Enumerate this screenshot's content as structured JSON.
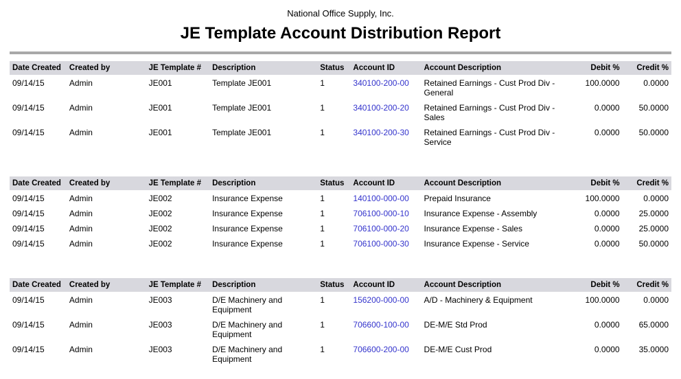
{
  "page": {
    "company": "National Office Supply, Inc.",
    "title": "JE Template Account Distribution Report"
  },
  "colors": {
    "header_bg": "#d8d8de",
    "link": "#3333cc",
    "rule": "#a8a8a8"
  },
  "columns": [
    {
      "key": "date_created",
      "label": "Date Created",
      "align": "left"
    },
    {
      "key": "created_by",
      "label": "Created by",
      "align": "left"
    },
    {
      "key": "je_template",
      "label": "JE Template #",
      "align": "left"
    },
    {
      "key": "description",
      "label": "Description",
      "align": "left"
    },
    {
      "key": "status",
      "label": "Status",
      "align": "left"
    },
    {
      "key": "account_id",
      "label": "Account ID",
      "align": "left"
    },
    {
      "key": "account_description",
      "label": "Account Description",
      "align": "left"
    },
    {
      "key": "debit_pct",
      "label": "Debit %",
      "align": "right"
    },
    {
      "key": "credit_pct",
      "label": "Credit %",
      "align": "right"
    }
  ],
  "groups": [
    {
      "rows": [
        {
          "date_created": "09/14/15",
          "created_by": "Admin",
          "je_template": "JE001",
          "description": "Template JE001",
          "status": "1",
          "account_id": "340100-200-00",
          "account_description": "Retained Earnings - Cust Prod Div - General",
          "debit_pct": "100.0000",
          "credit_pct": "0.0000"
        },
        {
          "date_created": "09/14/15",
          "created_by": "Admin",
          "je_template": "JE001",
          "description": "Template JE001",
          "status": "1",
          "account_id": "340100-200-20",
          "account_description": "Retained Earnings - Cust Prod Div - Sales",
          "debit_pct": "0.0000",
          "credit_pct": "50.0000"
        },
        {
          "date_created": "09/14/15",
          "created_by": "Admin",
          "je_template": "JE001",
          "description": "Template JE001",
          "status": "1",
          "account_id": "340100-200-30",
          "account_description": "Retained Earnings - Cust Prod Div - Service",
          "debit_pct": "0.0000",
          "credit_pct": "50.0000"
        }
      ]
    },
    {
      "rows": [
        {
          "date_created": "09/14/15",
          "created_by": "Admin",
          "je_template": "JE002",
          "description": "Insurance Expense",
          "status": "1",
          "account_id": "140100-000-00",
          "account_description": "Prepaid Insurance",
          "debit_pct": "100.0000",
          "credit_pct": "0.0000"
        },
        {
          "date_created": "09/14/15",
          "created_by": "Admin",
          "je_template": "JE002",
          "description": "Insurance Expense",
          "status": "1",
          "account_id": "706100-000-10",
          "account_description": "Insurance Expense - Assembly",
          "debit_pct": "0.0000",
          "credit_pct": "25.0000"
        },
        {
          "date_created": "09/14/15",
          "created_by": "Admin",
          "je_template": "JE002",
          "description": "Insurance Expense",
          "status": "1",
          "account_id": "706100-000-20",
          "account_description": "Insurance Expense - Sales",
          "debit_pct": "0.0000",
          "credit_pct": "25.0000"
        },
        {
          "date_created": "09/14/15",
          "created_by": "Admin",
          "je_template": "JE002",
          "description": "Insurance Expense",
          "status": "1",
          "account_id": "706100-000-30",
          "account_description": "Insurance Expense - Service",
          "debit_pct": "0.0000",
          "credit_pct": "50.0000"
        }
      ]
    },
    {
      "rows": [
        {
          "date_created": "09/14/15",
          "created_by": "Admin",
          "je_template": "JE003",
          "description": "D/E Machinery and Equipment",
          "status": "1",
          "account_id": "156200-000-00",
          "account_description": "A/D - Machinery & Equipment",
          "debit_pct": "100.0000",
          "credit_pct": "0.0000"
        },
        {
          "date_created": "09/14/15",
          "created_by": "Admin",
          "je_template": "JE003",
          "description": "D/E Machinery and Equipment",
          "status": "1",
          "account_id": "706600-100-00",
          "account_description": "DE-M/E Std Prod",
          "debit_pct": "0.0000",
          "credit_pct": "65.0000"
        },
        {
          "date_created": "09/14/15",
          "created_by": "Admin",
          "je_template": "JE003",
          "description": "D/E Machinery and Equipment",
          "status": "1",
          "account_id": "706600-200-00",
          "account_description": "DE-M/E Cust Prod",
          "debit_pct": "0.0000",
          "credit_pct": "35.0000"
        }
      ]
    }
  ]
}
